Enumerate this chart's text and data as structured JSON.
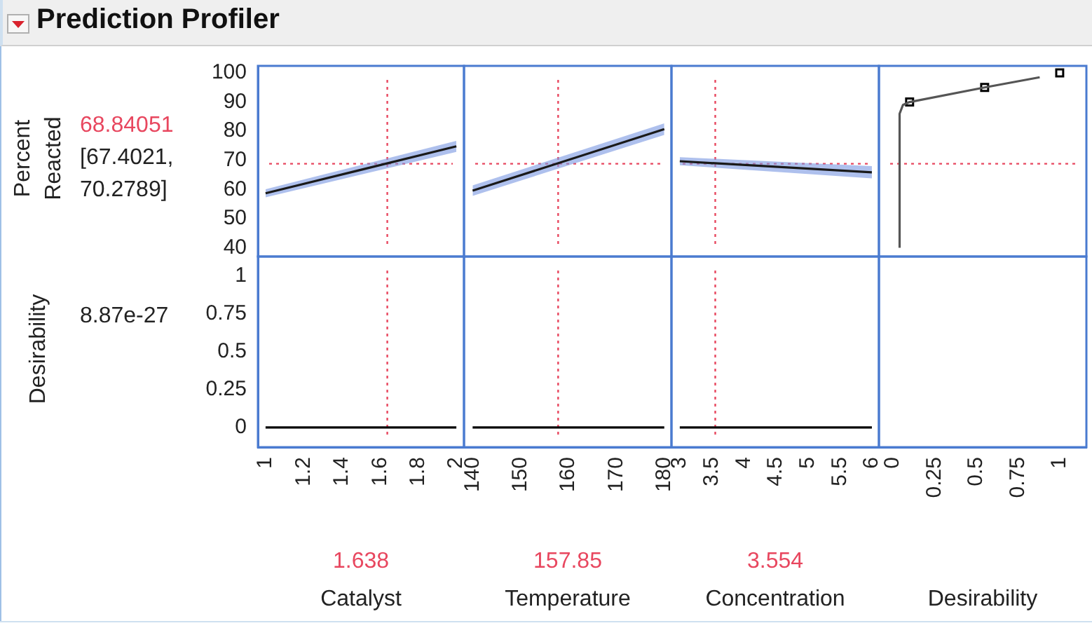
{
  "chart_data": [
    {
      "type": "line",
      "title": "Prediction Profiler",
      "ylabel": "Percent Reacted",
      "annotations": [
        "[67.4021, 70.2789]"
      ],
      "xlim": [
        0.96,
        2.04
      ],
      "ylim": [
        37,
        102.4
      ],
      "yticks": [
        40,
        50,
        60,
        70,
        80,
        90,
        100
      ],
      "tick_labels": "y",
      "ref_lines": [
        {
          "axis": "x",
          "value": 1.638,
          "color": "#e8475f",
          "line_style": "dotted"
        },
        {
          "axis": "y",
          "value": 68.84051,
          "label": "68.84051",
          "color": "#e8475f",
          "line_style": "dotted"
        }
      ],
      "series": [
        {
          "color": "#1a1a1a",
          "x": [
            1,
            2
          ],
          "values": [
            58.7,
            74.8
          ],
          "lower": [
            57.3,
            72.9
          ],
          "upper": [
            60.1,
            76.7
          ]
        }
      ]
    },
    {
      "type": "line",
      "xlim": [
        138.2,
        181.5
      ],
      "ylim": [
        37,
        102.4
      ],
      "tick_labels": false,
      "ref_lines": [
        {
          "axis": "x",
          "value": 157.85,
          "color": "#e8475f",
          "line_style": "dotted"
        },
        {
          "axis": "y",
          "value": 68.84051,
          "color": "#e8475f",
          "line_style": "dotted"
        }
      ],
      "series": [
        {
          "color": "#1a1a1a",
          "x": [
            140,
            180
          ],
          "values": [
            59.6,
            80.7
          ],
          "lower": [
            57.8,
            78.7
          ],
          "upper": [
            61.4,
            82.7
          ]
        }
      ]
    },
    {
      "type": "line",
      "xlim": [
        2.87,
        6.11
      ],
      "ylim": [
        37,
        102.4
      ],
      "tick_labels": false,
      "ref_lines": [
        {
          "axis": "x",
          "value": 3.554,
          "color": "#e8475f",
          "line_style": "dotted"
        },
        {
          "axis": "y",
          "value": 68.84051,
          "color": "#e8475f",
          "line_style": "dotted"
        }
      ],
      "series": [
        {
          "color": "#1a1a1a",
          "x": [
            3,
            6
          ],
          "values": [
            69.7,
            65.9
          ],
          "lower": [
            68.3,
            63.8
          ],
          "upper": [
            71.1,
            68.0
          ]
        }
      ]
    },
    {
      "type": "line",
      "xlim": [
        -0.084,
        1.16
      ],
      "ylim": [
        37,
        102.4
      ],
      "tick_labels": false,
      "ref_lines": [
        {
          "axis": "y",
          "value": 68.84051,
          "color": "#e8475f",
          "line_style": "dotted"
        }
      ],
      "series": [
        {
          "color": "#555555",
          "x": [
            0.04,
            0.04,
            0.06,
            0.1,
            0.55,
            0.88
          ],
          "values": [
            40,
            86,
            89,
            90,
            95,
            98.5
          ]
        },
        {
          "type": "scatter",
          "marker": "square",
          "color": "#000000",
          "x": [
            0.1,
            0.55,
            1
          ],
          "values": [
            90,
            95,
            100
          ]
        }
      ]
    },
    {
      "type": "line",
      "ylabel": "Desirability",
      "annotations": [
        "8.87e-27"
      ],
      "xlabel": "Catalyst",
      "xlim": [
        0.96,
        2.04
      ],
      "xticks": [
        1,
        1.2,
        1.4,
        1.6,
        1.8,
        2
      ],
      "ylim": [
        -0.13,
        1.13
      ],
      "yticks": [
        0,
        0.25,
        0.5,
        0.75,
        1
      ],
      "ref_lines": [
        {
          "axis": "x",
          "value": 1.638,
          "label": "1.638",
          "color": "#e8475f",
          "line_style": "dotted"
        }
      ],
      "series": [
        {
          "color": "#000000",
          "x": [
            1,
            2
          ],
          "values": [
            0,
            0
          ]
        }
      ]
    },
    {
      "type": "line",
      "xlabel": "Temperature",
      "xlim": [
        138.2,
        181.5
      ],
      "xticks": [
        140,
        150,
        160,
        170,
        180
      ],
      "ylim": [
        -0.13,
        1.13
      ],
      "tick_labels": "x",
      "ref_lines": [
        {
          "axis": "x",
          "value": 157.85,
          "label": "157.85",
          "color": "#e8475f",
          "line_style": "dotted"
        }
      ],
      "series": [
        {
          "color": "#000000",
          "x": [
            140,
            180
          ],
          "values": [
            0,
            0
          ]
        }
      ]
    },
    {
      "type": "line",
      "xlabel": "Concentration",
      "xlim": [
        2.87,
        6.11
      ],
      "xticks": [
        3,
        3.5,
        4,
        4.5,
        5,
        5.5,
        6
      ],
      "ylim": [
        -0.13,
        1.13
      ],
      "tick_labels": "x",
      "ref_lines": [
        {
          "axis": "x",
          "value": 3.554,
          "label": "3.554",
          "color": "#e8475f",
          "line_style": "dotted"
        }
      ],
      "series": [
        {
          "color": "#000000",
          "x": [
            3,
            6
          ],
          "values": [
            0,
            0
          ]
        }
      ]
    },
    {
      "type": "line",
      "xlabel": "Desirability",
      "xlim": [
        -0.084,
        1.16
      ],
      "xticks": [
        0,
        0.25,
        0.5,
        0.75,
        1
      ],
      "ylim": [
        -0.13,
        1.13
      ],
      "tick_labels": "x"
    }
  ]
}
